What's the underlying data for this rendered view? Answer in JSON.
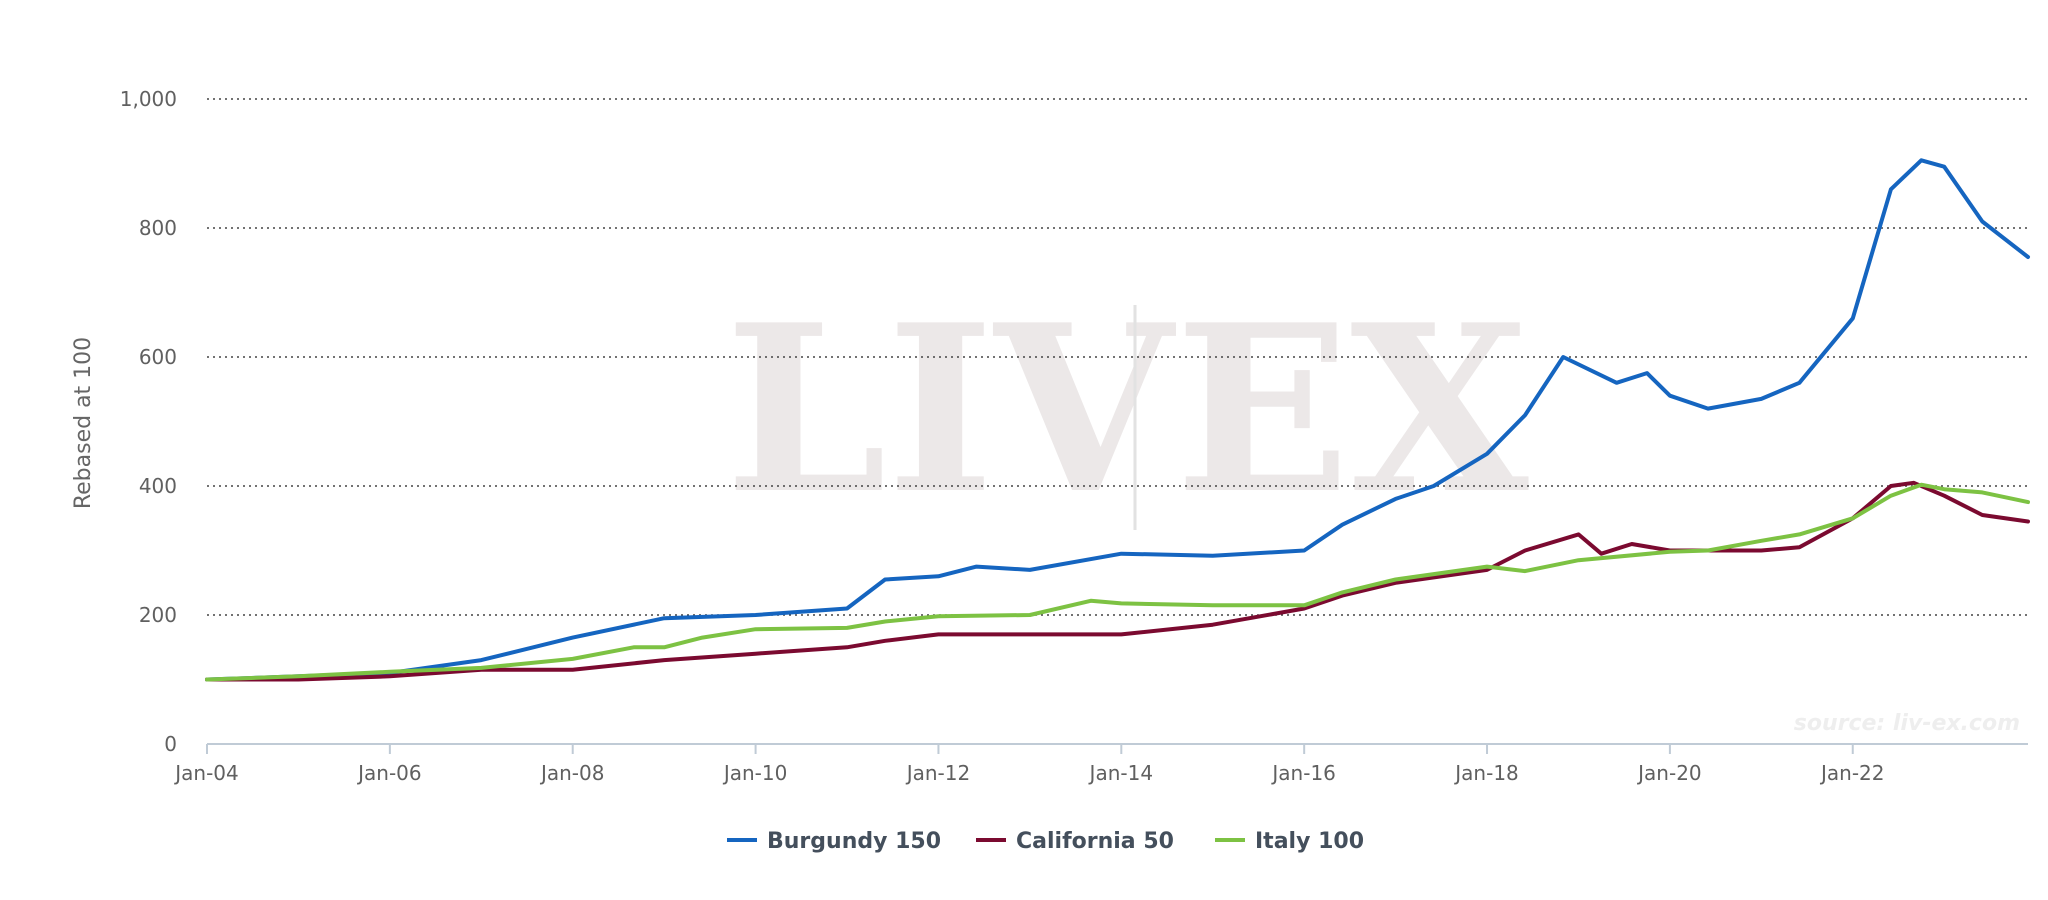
{
  "chart_data": {
    "type": "line",
    "ylabel": "Rebased at 100",
    "ylim": [
      0,
      1000
    ],
    "yticks": [
      "0",
      "200",
      "400",
      "600",
      "800",
      "1,000"
    ],
    "xticks": [
      "Jan-04",
      "Jan-06",
      "Jan-08",
      "Jan-10",
      "Jan-12",
      "Jan-14",
      "Jan-16",
      "Jan-18",
      "Jan-20",
      "Jan-22"
    ],
    "xlim": [
      "2004-01",
      "2023-12"
    ],
    "grid": true,
    "legend_position": "bottom-center",
    "watermark": "LIV-EX",
    "source": "source: liv-ex.com",
    "series": [
      {
        "name": "Burgundy 150",
        "color": "#1565c0",
        "x": [
          "2004-01",
          "2005-01",
          "2006-01",
          "2007-01",
          "2008-01",
          "2009-01",
          "2010-01",
          "2011-01",
          "2011-06",
          "2012-01",
          "2012-06",
          "2013-01",
          "2014-01",
          "2015-01",
          "2016-01",
          "2016-06",
          "2017-01",
          "2017-06",
          "2018-01",
          "2018-06",
          "2018-11",
          "2019-06",
          "2019-10",
          "2020-01",
          "2020-06",
          "2021-01",
          "2021-06",
          "2022-01",
          "2022-06",
          "2022-10",
          "2023-01",
          "2023-06",
          "2023-12"
        ],
        "values": [
          100,
          105,
          110,
          130,
          165,
          195,
          200,
          210,
          255,
          260,
          275,
          270,
          295,
          292,
          300,
          340,
          380,
          400,
          450,
          510,
          600,
          560,
          575,
          540,
          520,
          535,
          560,
          660,
          860,
          905,
          895,
          810,
          755
        ]
      },
      {
        "name": "California 50",
        "color": "#7b0a30",
        "x": [
          "2004-01",
          "2005-01",
          "2006-01",
          "2007-01",
          "2008-01",
          "2009-01",
          "2010-01",
          "2011-01",
          "2011-06",
          "2012-01",
          "2013-01",
          "2014-01",
          "2015-01",
          "2016-01",
          "2016-06",
          "2017-01",
          "2018-01",
          "2018-06",
          "2019-01",
          "2019-04",
          "2019-08",
          "2020-01",
          "2021-01",
          "2021-06",
          "2022-01",
          "2022-06",
          "2022-09",
          "2023-01",
          "2023-06",
          "2023-12"
        ],
        "values": [
          100,
          100,
          105,
          115,
          115,
          130,
          140,
          150,
          160,
          170,
          170,
          170,
          185,
          210,
          230,
          250,
          270,
          300,
          325,
          295,
          310,
          300,
          300,
          305,
          350,
          400,
          405,
          385,
          355,
          345
        ]
      },
      {
        "name": "Italy 100",
        "color": "#7dc243",
        "x": [
          "2004-01",
          "2005-01",
          "2006-01",
          "2007-01",
          "2008-01",
          "2008-09",
          "2009-01",
          "2009-06",
          "2010-01",
          "2011-01",
          "2011-06",
          "2012-01",
          "2013-01",
          "2013-09",
          "2014-01",
          "2015-01",
          "2016-01",
          "2016-06",
          "2017-01",
          "2018-01",
          "2018-06",
          "2019-01",
          "2020-01",
          "2020-06",
          "2021-01",
          "2021-06",
          "2022-01",
          "2022-06",
          "2022-10",
          "2023-01",
          "2023-06",
          "2023-12"
        ],
        "values": [
          100,
          105,
          112,
          118,
          132,
          150,
          150,
          165,
          178,
          180,
          190,
          198,
          200,
          222,
          218,
          215,
          215,
          235,
          255,
          275,
          268,
          285,
          298,
          300,
          315,
          325,
          350,
          385,
          402,
          395,
          390,
          375
        ]
      }
    ]
  }
}
